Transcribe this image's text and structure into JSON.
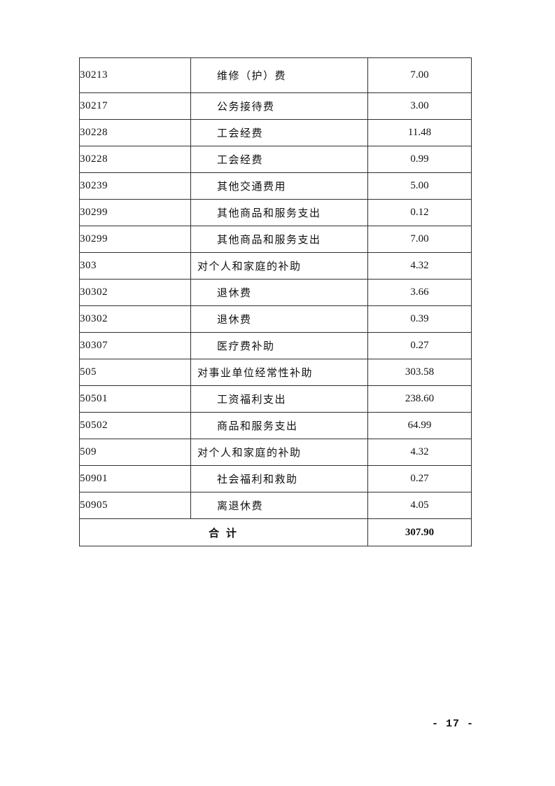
{
  "page": {
    "number_label": "- 17 -"
  },
  "table": {
    "columns": [
      "code",
      "name",
      "value"
    ],
    "rows": [
      {
        "code": "30213",
        "name": "维修（护）费",
        "level": 2,
        "value": "7.00"
      },
      {
        "code": "30217",
        "name": "公务接待费",
        "level": 2,
        "value": "3.00"
      },
      {
        "code": "30228",
        "name": "工会经费",
        "level": 2,
        "value": "11.48"
      },
      {
        "code": "30228",
        "name": "工会经费",
        "level": 2,
        "value": "0.99"
      },
      {
        "code": "30239",
        "name": "其他交通费用",
        "level": 2,
        "value": "5.00"
      },
      {
        "code": "30299",
        "name": "其他商品和服务支出",
        "level": 2,
        "value": "0.12"
      },
      {
        "code": "30299",
        "name": "其他商品和服务支出",
        "level": 2,
        "value": "7.00"
      },
      {
        "code": "303",
        "name": "对个人和家庭的补助",
        "level": 1,
        "value": "4.32"
      },
      {
        "code": "30302",
        "name": "退休费",
        "level": 2,
        "value": "3.66"
      },
      {
        "code": "30302",
        "name": "退休费",
        "level": 2,
        "value": "0.39"
      },
      {
        "code": "30307",
        "name": "医疗费补助",
        "level": 2,
        "value": "0.27"
      },
      {
        "code": "505",
        "name": "对事业单位经常性补助",
        "level": 1,
        "value": "303.58"
      },
      {
        "code": "50501",
        "name": "工资福利支出",
        "level": 2,
        "value": "238.60"
      },
      {
        "code": "50502",
        "name": "商品和服务支出",
        "level": 2,
        "value": "64.99"
      },
      {
        "code": "509",
        "name": "对个人和家庭的补助",
        "level": 1,
        "value": "4.32"
      },
      {
        "code": "50901",
        "name": "社会福利和救助",
        "level": 2,
        "value": "0.27"
      },
      {
        "code": "50905",
        "name": "离退休费",
        "level": 2,
        "value": "4.05"
      }
    ],
    "total": {
      "label": "合 计",
      "value": "307.90"
    }
  }
}
